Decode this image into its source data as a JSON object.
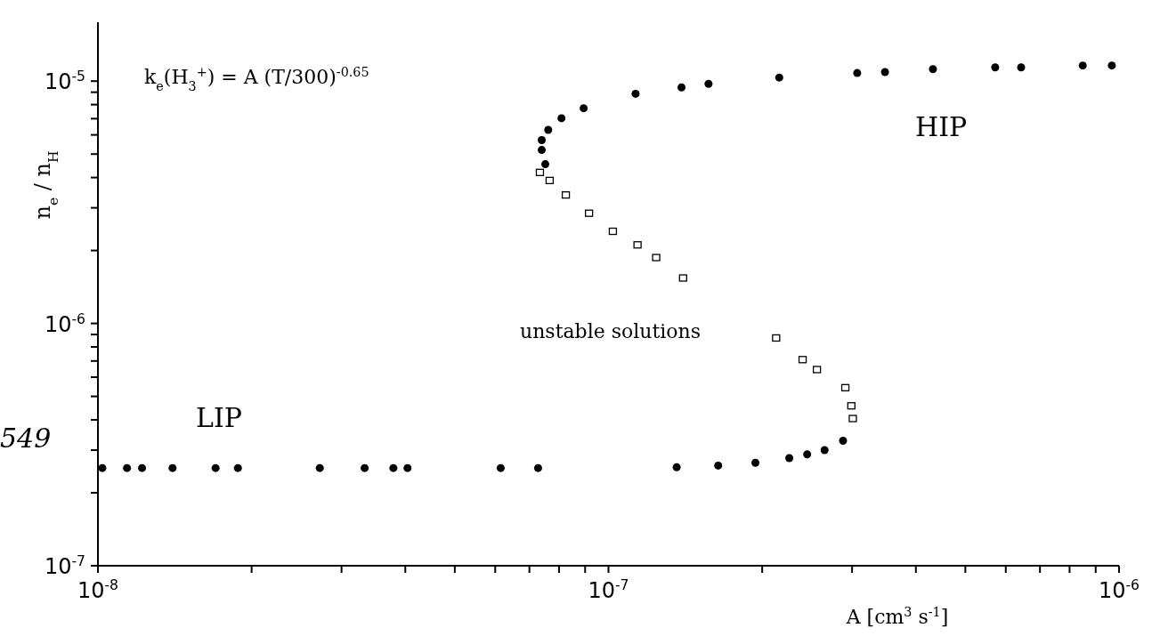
{
  "chart_data": {
    "type": "scatter",
    "xlabel": "A [cm$^{3}$ s$^{-1}$]",
    "ylabel": "n$_{e}$ / n$_{H}$",
    "log": "xy",
    "grid": false,
    "xlim": [
      1e-08,
      1e-06
    ],
    "ylim": [
      1e-07,
      1.75e-05
    ],
    "xticks": [
      {
        "value": 1e-08,
        "label": "10$^{-8}$"
      },
      {
        "value": 2e-08,
        "label": null
      },
      {
        "value": 3e-08,
        "label": null
      },
      {
        "value": 4e-08,
        "label": null
      },
      {
        "value": 5e-08,
        "label": null
      },
      {
        "value": 6e-08,
        "label": null
      },
      {
        "value": 7e-08,
        "label": null
      },
      {
        "value": 8e-08,
        "label": null
      },
      {
        "value": 9e-08,
        "label": null
      },
      {
        "value": 1e-07,
        "label": "10$^{-7}$"
      },
      {
        "value": 2e-07,
        "label": null
      },
      {
        "value": 3e-07,
        "label": null
      },
      {
        "value": 4e-07,
        "label": null
      },
      {
        "value": 5e-07,
        "label": null
      },
      {
        "value": 6e-07,
        "label": null
      },
      {
        "value": 7e-07,
        "label": null
      },
      {
        "value": 8e-07,
        "label": null
      },
      {
        "value": 9e-07,
        "label": null
      },
      {
        "value": 1e-06,
        "label": "10$^{-6}$"
      }
    ],
    "yticks": [
      {
        "value": 1e-07,
        "label": "10$^{-7}$"
      },
      {
        "value": 2e-07,
        "label": null
      },
      {
        "value": 3e-07,
        "label": null
      },
      {
        "value": 4e-07,
        "label": null
      },
      {
        "value": 5e-07,
        "label": null
      },
      {
        "value": 6e-07,
        "label": null
      },
      {
        "value": 7e-07,
        "label": null
      },
      {
        "value": 8e-07,
        "label": null
      },
      {
        "value": 9e-07,
        "label": null
      },
      {
        "value": 1e-06,
        "label": "10$^{-6}$"
      },
      {
        "value": 2e-06,
        "label": null
      },
      {
        "value": 3e-06,
        "label": null
      },
      {
        "value": 4e-06,
        "label": null
      },
      {
        "value": 5e-06,
        "label": null
      },
      {
        "value": 6e-06,
        "label": null
      },
      {
        "value": 7e-06,
        "label": null
      },
      {
        "value": 8e-06,
        "label": null
      },
      {
        "value": 9e-06,
        "label": null
      },
      {
        "value": 1e-05,
        "label": "10$^{-5}$"
      }
    ],
    "annotations": [
      "k$_{e}$(H$_{3}$$^{+}$) = A (T/300)$^{-0.65}$",
      "HIP",
      "LIP",
      "unstable solutions",
      "549"
    ],
    "series": [
      {
        "color": "#000000",
        "marker": "circle",
        "x": [
          1.02e-08,
          1.14e-08,
          1.22e-08,
          1.4e-08,
          1.7e-08,
          1.88e-08,
          2.72e-08,
          3.33e-08,
          3.79e-08,
          4.04e-08,
          6.15e-08,
          7.28e-08,
          1.36e-07,
          1.64e-07,
          1.94e-07,
          2.26e-07,
          2.45e-07,
          2.65e-07,
          2.88e-07
        ],
        "values": [
          2.53e-07,
          2.53e-07,
          2.53e-07,
          2.53e-07,
          2.53e-07,
          2.53e-07,
          2.53e-07,
          2.53e-07,
          2.53e-07,
          2.53e-07,
          2.53e-07,
          2.53e-07,
          2.55e-07,
          2.59e-07,
          2.66e-07,
          2.78e-07,
          2.88e-07,
          3e-07,
          3.28e-07
        ]
      },
      {
        "color": "#000000",
        "marker": "square",
        "x": [
          3.01e-07,
          2.99e-07,
          2.91e-07,
          2.56e-07,
          2.4e-07,
          2.13e-07,
          1.4e-07,
          1.24e-07,
          1.14e-07,
          1.02e-07,
          9.16e-08,
          8.25e-08,
          7.67e-08,
          7.34e-08
        ],
        "values": [
          4.05e-07,
          4.57e-07,
          5.43e-07,
          6.45e-07,
          7.09e-07,
          8.71e-07,
          1.54e-06,
          1.87e-06,
          2.11e-06,
          2.4e-06,
          2.85e-06,
          3.39e-06,
          3.89e-06,
          4.2e-06
        ]
      },
      {
        "color": "#000000",
        "marker": "circle",
        "x": [
          7.52e-08,
          7.4e-08,
          7.4e-08,
          7.62e-08,
          8.09e-08,
          8.94e-08,
          1.13e-07,
          1.39e-07,
          1.57e-07,
          2.16e-07,
          3.07e-07,
          3.48e-07,
          4.32e-07,
          5.72e-07,
          6.43e-07,
          8.49e-07,
          9.68e-07
        ],
        "values": [
          4.54e-06,
          5.2e-06,
          5.71e-06,
          6.29e-06,
          7.03e-06,
          7.73e-06,
          8.87e-06,
          9.42e-06,
          9.75e-06,
          1.035e-05,
          1.08e-05,
          1.09e-05,
          1.12e-05,
          1.14e-05,
          1.14e-05,
          1.16e-05,
          1.16e-05
        ]
      }
    ]
  }
}
